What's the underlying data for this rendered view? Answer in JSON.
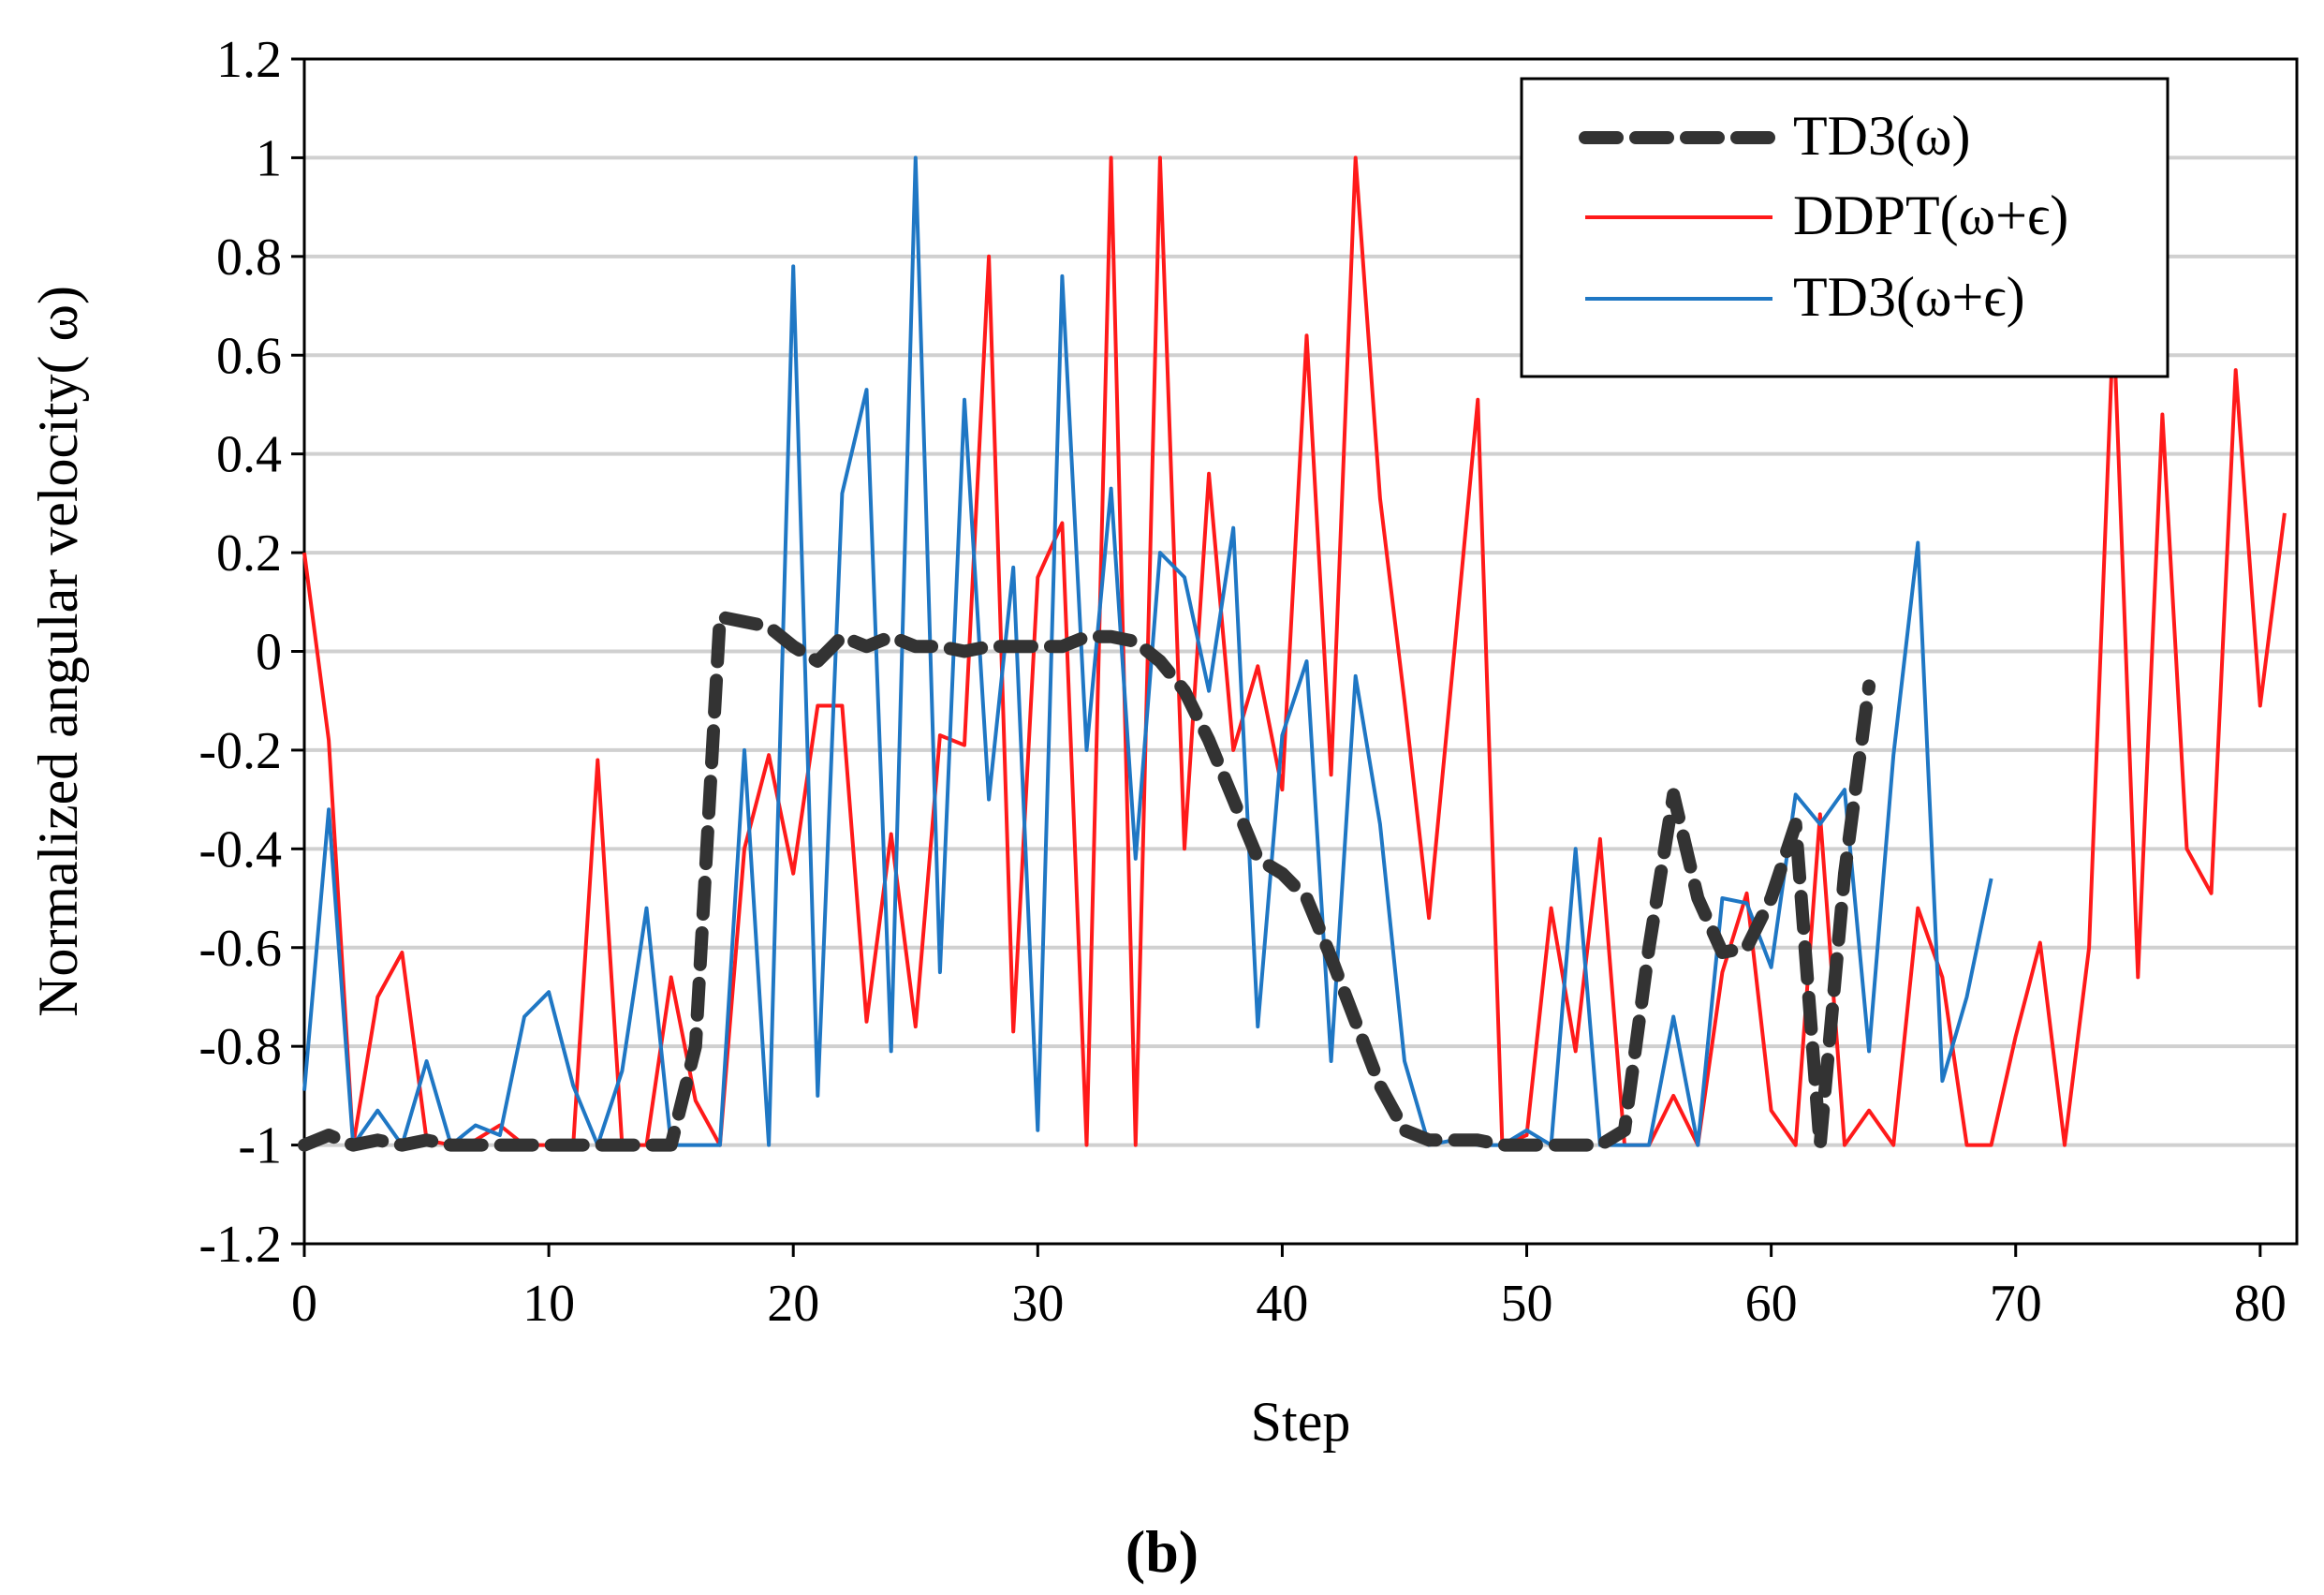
{
  "chart_data": {
    "type": "line",
    "title": "",
    "xlabel": "Step",
    "ylabel": "Normalized angular velocity( ω)",
    "caption": "(b)",
    "xlim": [
      0,
      81.5
    ],
    "ylim": [
      -1.2,
      1.2
    ],
    "x_ticks": [
      0,
      10,
      20,
      30,
      40,
      50,
      60,
      70,
      80
    ],
    "y_ticks": [
      -1.2,
      -1,
      -0.8,
      -0.6,
      -0.4,
      -0.2,
      0,
      0.2,
      0.4,
      0.6,
      0.8,
      1,
      1.2
    ],
    "y_tick_labels": [
      "-1.2",
      "-1",
      "-0.8",
      "-0.6",
      "-0.4",
      "-0.2",
      "0",
      "0.2",
      "0.4",
      "0.6",
      "0.8",
      "1",
      "1.2"
    ],
    "grid": "horizontal",
    "legend_position": "top-right",
    "series": [
      {
        "name": "TD3(ω)",
        "color": "#333333",
        "style": "dashed",
        "x": [
          0,
          1,
          2,
          3,
          4,
          5,
          6,
          7,
          8,
          9,
          10,
          11,
          12,
          13,
          14,
          15,
          16,
          17,
          18,
          19,
          20,
          21,
          22,
          23,
          24,
          25,
          26,
          27,
          28,
          29,
          30,
          31,
          32,
          33,
          34,
          35,
          36,
          37,
          38,
          39,
          40,
          41,
          42,
          43,
          44,
          45,
          46,
          47,
          48,
          49,
          50,
          51,
          52,
          53,
          54,
          55,
          56,
          57,
          58,
          59,
          60,
          61,
          62,
          63,
          64
        ],
        "values": [
          -1,
          -0.98,
          -1,
          -0.99,
          -1,
          -0.99,
          -1,
          -1,
          -1,
          -1,
          -1,
          -1,
          -1,
          -1,
          -1,
          -1,
          -0.8,
          0.07,
          0.06,
          0.05,
          0.01,
          -0.02,
          0.03,
          0.01,
          0.03,
          0.01,
          0.01,
          0,
          0.01,
          0.01,
          0.01,
          0.01,
          0.03,
          0.03,
          0.02,
          -0.02,
          -0.08,
          -0.18,
          -0.3,
          -0.42,
          -0.45,
          -0.5,
          -0.62,
          -0.75,
          -0.88,
          -0.97,
          -0.99,
          -0.99,
          -0.99,
          -1,
          -1,
          -1,
          -1,
          -1,
          -0.97,
          -0.6,
          -0.29,
          -0.5,
          -0.61,
          -0.6,
          -0.5,
          -0.35,
          -1,
          -0.45,
          -0.07
        ]
      },
      {
        "name": "DDPT(ω+ϵ)",
        "color": "#ff1a1a",
        "style": "solid",
        "x": [
          0,
          1,
          2,
          3,
          4,
          5,
          6,
          7,
          8,
          9,
          10,
          11,
          12,
          13,
          14,
          15,
          16,
          17,
          18,
          19,
          20,
          21,
          22,
          23,
          24,
          25,
          26,
          27,
          28,
          29,
          30,
          31,
          32,
          33,
          34,
          35,
          36,
          37,
          38,
          39,
          40,
          41,
          42,
          43,
          44,
          45,
          46,
          47,
          48,
          49,
          50,
          51,
          52,
          53,
          54,
          55,
          56,
          57,
          58,
          59,
          60,
          61,
          62,
          63,
          64,
          65,
          66,
          67,
          68,
          69,
          70,
          71,
          72,
          73,
          74,
          75,
          76,
          77,
          78,
          79,
          80,
          81
        ],
        "values": [
          0.2,
          -0.18,
          -1,
          -0.7,
          -0.61,
          -0.99,
          -1,
          -0.99,
          -0.96,
          -1,
          -1,
          -1,
          -0.22,
          -1,
          -1,
          -0.66,
          -0.91,
          -1,
          -0.4,
          -0.21,
          -0.45,
          -0.11,
          -0.11,
          -0.75,
          -0.37,
          -0.76,
          -0.17,
          -0.19,
          0.8,
          -0.77,
          0.15,
          0.26,
          -1,
          1,
          -1,
          1,
          -0.4,
          0.36,
          -0.2,
          -0.03,
          -0.28,
          0.64,
          -0.25,
          1,
          0.31,
          -0.1,
          -0.54,
          -0.02,
          0.51,
          -1,
          -0.98,
          -0.52,
          -0.81,
          -0.38,
          -1,
          -1,
          -0.9,
          -1,
          -0.65,
          -0.49,
          -0.93,
          -1,
          -0.33,
          -1,
          -0.93,
          -1,
          -0.52,
          -0.66,
          -1,
          -1,
          -0.78,
          -0.59,
          -1,
          -0.6,
          0.67,
          -0.66,
          0.48,
          -0.4,
          -0.49,
          0.57,
          -0.11,
          0.28
        ]
      },
      {
        "name": "TD3(ω+ϵ)",
        "color": "#1f77c4",
        "style": "solid",
        "x": [
          0,
          1,
          2,
          3,
          4,
          5,
          6,
          7,
          8,
          9,
          10,
          11,
          12,
          13,
          14,
          15,
          16,
          17,
          18,
          19,
          20,
          21,
          22,
          23,
          24,
          25,
          26,
          27,
          28,
          29,
          30,
          31,
          32,
          33,
          34,
          35,
          36,
          37,
          38,
          39,
          40,
          41,
          42,
          43,
          44,
          45,
          46,
          47,
          48,
          49,
          50,
          51,
          52,
          53,
          54,
          55,
          56,
          57,
          58,
          59,
          60,
          61,
          62,
          63,
          64,
          65,
          66,
          67,
          68,
          69
        ],
        "values": [
          -0.89,
          -0.32,
          -1,
          -0.93,
          -1,
          -0.83,
          -1,
          -0.96,
          -0.98,
          -0.74,
          -0.69,
          -0.88,
          -1,
          -0.85,
          -0.52,
          -1,
          -1,
          -1,
          -0.2,
          -1,
          0.78,
          -0.9,
          0.32,
          0.53,
          -0.81,
          1,
          -0.65,
          0.51,
          -0.3,
          0.17,
          -0.97,
          0.76,
          -0.2,
          0.33,
          -0.42,
          0.2,
          0.15,
          -0.08,
          0.25,
          -0.76,
          -0.17,
          -0.02,
          -0.83,
          -0.05,
          -0.35,
          -0.83,
          -1,
          -0.99,
          -1,
          -1,
          -0.97,
          -1,
          -0.4,
          -1,
          -1,
          -1,
          -0.74,
          -1,
          -0.5,
          -0.51,
          -0.64,
          -0.29,
          -0.35,
          -0.28,
          -0.81,
          -0.21,
          0.22,
          -0.87,
          -0.7,
          -0.46
        ]
      }
    ]
  }
}
